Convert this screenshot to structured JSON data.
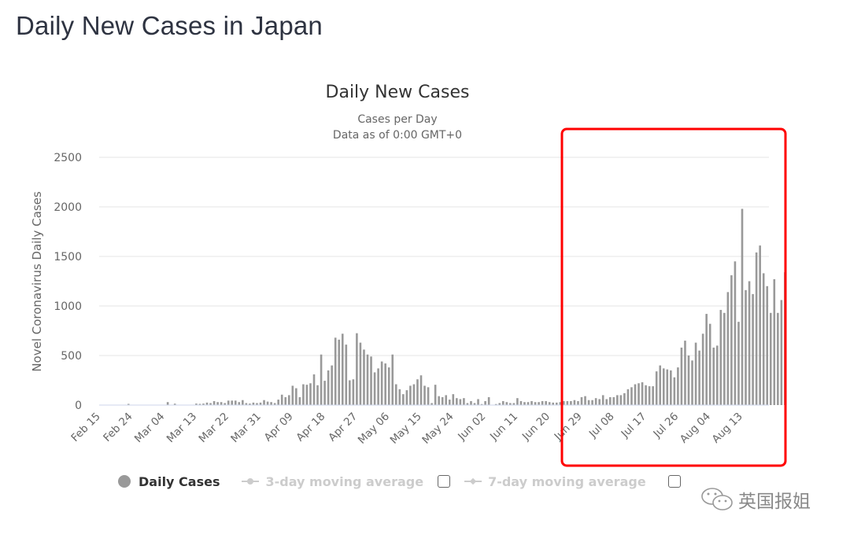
{
  "page": {
    "title": "Daily New Cases in Japan"
  },
  "chart": {
    "title": "Daily New Cases",
    "subtitle_line1": "Cases per Day",
    "subtitle_line2": "Data as of 0:00 GMT+0",
    "ylabel": "Novel Coronavirus Daily Cases"
  },
  "legend": {
    "items": [
      {
        "label": "Daily Cases",
        "active": true
      },
      {
        "label": "3-day moving average",
        "active": false
      },
      {
        "label": "7-day moving average",
        "active": false
      }
    ]
  },
  "annotation": {
    "color": "#ff0000",
    "label": "highlight-box"
  },
  "watermark": {
    "text": "英国报姐"
  },
  "colors": {
    "bar": "#999999",
    "grid": "#e6e6e6",
    "axis": "#ccd6eb",
    "text": "#666666",
    "highlight": "#ff0000"
  },
  "chart_data": {
    "type": "bar",
    "title": "Daily New Cases",
    "subtitle": "Cases per Day / Data as of 0:00 GMT+0",
    "xlabel": "",
    "ylabel": "Novel Coronavirus Daily Cases",
    "ylim": [
      0,
      2500
    ],
    "yticks": [
      0,
      500,
      1000,
      1500,
      2000,
      2500
    ],
    "xticks": [
      "Feb 15",
      "Feb 24",
      "Mar 04",
      "Mar 13",
      "Mar 22",
      "Mar 31",
      "Apr 09",
      "Apr 18",
      "Apr 27",
      "May 06",
      "May 15",
      "May 24",
      "Jun 02",
      "Jun 11",
      "Jun 20",
      "Jun 29",
      "Jul 08",
      "Jul 17",
      "Jul 26",
      "Aug 04",
      "Aug 13"
    ],
    "x_start": "Feb 15",
    "x_end": "Aug 20",
    "grid": true,
    "legend_position": "bottom",
    "series": [
      {
        "name": "Daily Cases",
        "values": [
          0,
          0,
          0,
          0,
          0,
          0,
          0,
          0,
          12,
          0,
          0,
          0,
          0,
          0,
          0,
          0,
          0,
          0,
          0,
          30,
          0,
          14,
          0,
          0,
          0,
          0,
          0,
          15,
          12,
          15,
          25,
          20,
          40,
          30,
          30,
          20,
          45,
          45,
          45,
          30,
          50,
          20,
          15,
          25,
          20,
          25,
          50,
          35,
          30,
          20,
          55,
          105,
          80,
          100,
          195,
          170,
          80,
          210,
          205,
          220,
          310,
          200,
          510,
          245,
          350,
          400,
          680,
          660,
          720,
          610,
          250,
          260,
          725,
          630,
          560,
          510,
          490,
          330,
          370,
          440,
          420,
          380,
          510,
          210,
          160,
          110,
          150,
          195,
          210,
          260,
          300,
          195,
          180,
          20,
          205,
          90,
          80,
          100,
          55,
          110,
          70,
          60,
          70,
          20,
          40,
          20,
          60,
          10,
          40,
          80,
          0,
          10,
          20,
          40,
          30,
          20,
          20,
          70,
          40,
          30,
          30,
          40,
          30,
          30,
          40,
          40,
          30,
          25,
          25,
          30,
          40,
          40,
          40,
          50,
          40,
          80,
          90,
          50,
          50,
          70,
          60,
          100,
          60,
          80,
          80,
          100,
          100,
          120,
          160,
          180,
          210,
          220,
          230,
          200,
          190,
          190,
          340,
          400,
          370,
          360,
          350,
          280,
          380,
          580,
          650,
          500,
          450,
          630,
          550,
          720,
          920,
          820,
          580,
          600,
          960,
          930,
          1140,
          1310,
          1450,
          840,
          1980,
          1160,
          1250,
          1120,
          1540,
          1610,
          1330,
          1200,
          930,
          1270,
          930,
          1060,
          1340
        ]
      }
    ],
    "highlight_region": {
      "from": "Jun 21",
      "to": "Aug 20",
      "color": "#ff0000"
    }
  }
}
